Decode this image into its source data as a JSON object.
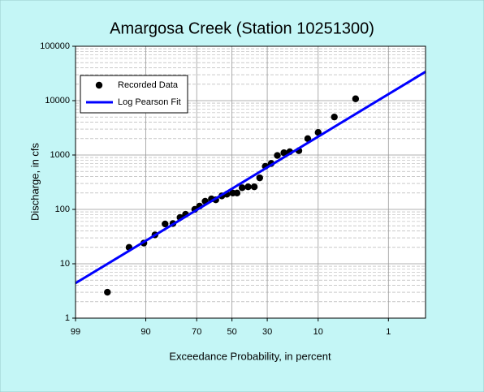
{
  "chart_data": {
    "type": "scatter",
    "title": "Amargosa Creek (Station 10251300)",
    "x_label": "Exceedance Probability, in percent",
    "y_label": "Discharge, in cfs",
    "x_scale": "probability",
    "y_scale": "log",
    "xlim": [
      99,
      0.2
    ],
    "ylim": [
      1,
      100000
    ],
    "xticks": [
      99,
      90,
      70,
      50,
      30,
      10,
      1
    ],
    "yticks": [
      1,
      10,
      100,
      1000,
      10000,
      100000
    ],
    "grid": true,
    "minor_grid": true,
    "legend": "upper left",
    "series": [
      {
        "name": "Recorded Data",
        "kind": "points",
        "color": "#000000",
        "x": [
          96.8,
          93.7,
          90.5,
          87.4,
          84,
          81,
          78,
          75.5,
          71,
          68.5,
          65.5,
          62,
          59.5,
          56,
          53,
          49.5,
          47,
          44,
          40.5,
          37,
          34,
          31,
          28,
          25,
          22,
          19.5,
          16,
          13,
          10,
          6.4,
          3.3
        ],
        "values": [
          3,
          20,
          24,
          34,
          54,
          55,
          71,
          81,
          100,
          115,
          141,
          156,
          150,
          177,
          190,
          200,
          200,
          250,
          260,
          260,
          380,
          620,
          700,
          980,
          1100,
          1150,
          1200,
          2000,
          2600,
          5000,
          10800
        ]
      },
      {
        "name": "Log Pearson Fit",
        "kind": "line",
        "color": "#0000ff",
        "x": [
          99,
          0.2
        ],
        "values": [
          4.4,
          34000
        ]
      }
    ]
  }
}
